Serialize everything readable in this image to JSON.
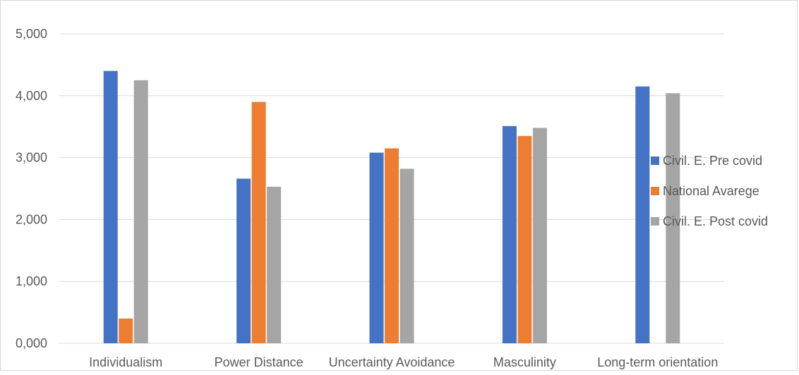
{
  "chart_data": {
    "type": "bar",
    "categories": [
      "Individualism",
      "Power Distance",
      "Uncertainty Avoidance",
      "Masculinity",
      "Long-term orientation"
    ],
    "series": [
      {
        "name": "Civil. E. Pre covid",
        "color": "#4472C4",
        "values": [
          4.4,
          2.66,
          3.08,
          3.51,
          4.15
        ]
      },
      {
        "name": "National Avarege",
        "color": "#ED7D31",
        "values": [
          0.4,
          3.9,
          3.15,
          3.35,
          null
        ]
      },
      {
        "name": "Civil. E. Post covid",
        "color": "#A5A5A5",
        "values": [
          4.25,
          2.53,
          2.82,
          3.48,
          4.04
        ]
      }
    ],
    "ylim": [
      0,
      5
    ],
    "yticks": [
      0,
      1,
      2,
      3,
      4,
      5
    ],
    "ytick_labels": [
      "0,000",
      "1,000",
      "2,000",
      "3,000",
      "4,000",
      "5,000"
    ],
    "grid": true,
    "legend_position": "right"
  }
}
